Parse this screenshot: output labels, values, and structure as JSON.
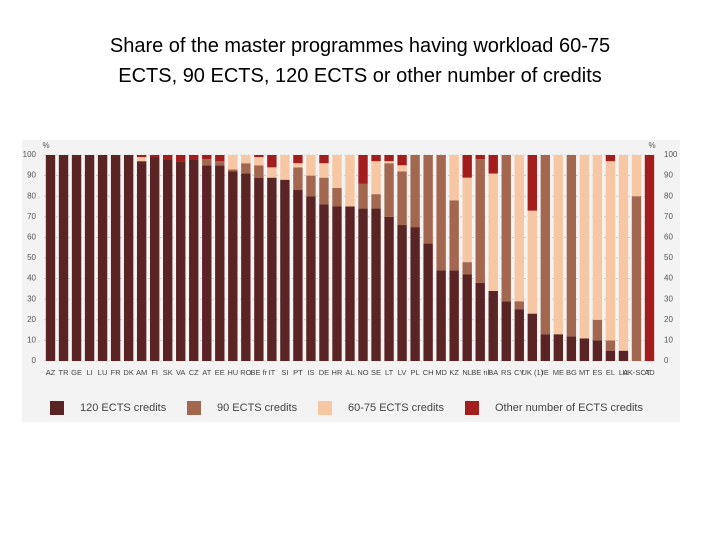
{
  "chart_data": {
    "type": "stacked-bar",
    "title_lines": [
      "Share of the  master programmes having workload 60-75",
      "ECTS, 90 ECTS, 120 ECTS or other number of credits"
    ],
    "y_unit": "%",
    "categories": [
      "AZ",
      "TR",
      "GE",
      "LI",
      "LU",
      "FR",
      "DK",
      "AM",
      "FI",
      "SK",
      "VA",
      "CZ",
      "AT",
      "EE",
      "HU",
      "RO",
      "BE fr",
      "IT",
      "SI",
      "PT",
      "IS",
      "DE",
      "HR",
      "AL",
      "NO",
      "SE",
      "LT",
      "LV",
      "PL",
      "CH",
      "MD",
      "KZ",
      "NL",
      "BE nl",
      "BA",
      "RS",
      "CY",
      "UK (1)",
      "IE",
      "ME",
      "BG",
      "MT",
      "ES",
      "EL",
      "LA",
      "UK-SCT",
      "AD"
    ],
    "series": [
      {
        "name": "120 ECTS credits",
        "color": "#5b2424",
        "values": [
          100,
          100,
          100,
          100,
          100,
          100,
          100,
          97,
          99,
          98,
          97,
          98,
          95,
          95,
          92,
          91,
          89,
          89,
          88,
          83,
          80,
          76,
          75,
          75,
          74,
          74,
          70,
          66,
          65,
          57,
          44,
          44,
          42,
          38,
          34,
          29,
          25,
          23,
          13,
          13,
          12,
          11,
          10,
          5,
          5,
          0,
          0
        ]
      },
      {
        "name": "90 ECTS credits",
        "color": "#a2674e",
        "values": [
          0,
          0,
          0,
          0,
          0,
          0,
          0,
          0,
          0,
          0,
          0,
          0,
          3,
          2,
          1,
          5,
          6,
          0,
          0,
          11,
          10,
          13,
          9,
          0,
          12,
          7,
          26,
          26,
          35,
          43,
          56,
          34,
          6,
          60,
          0,
          71,
          4,
          0,
          87,
          0,
          88,
          0,
          10,
          5,
          0,
          80,
          0
        ]
      },
      {
        "name": "60-75 ECTS credits",
        "color": "#f6c7a2",
        "values": [
          0,
          0,
          0,
          0,
          0,
          0,
          0,
          2,
          0,
          0,
          0,
          0,
          0,
          0,
          7,
          4,
          4,
          5,
          12,
          2,
          10,
          7,
          16,
          25,
          0,
          16,
          1,
          3,
          0,
          0,
          0,
          22,
          41,
          0,
          57,
          0,
          71,
          50,
          0,
          87,
          0,
          89,
          80,
          87,
          95,
          20,
          0
        ]
      },
      {
        "name": "Other number of ECTS credits",
        "color": "#a31d1d",
        "values": [
          0,
          0,
          0,
          0,
          0,
          0,
          0,
          1,
          1,
          2,
          3,
          2,
          2,
          3,
          0,
          0,
          1,
          6,
          0,
          4,
          0,
          4,
          0,
          0,
          14,
          3,
          3,
          5,
          0,
          0,
          0,
          0,
          11,
          2,
          9,
          0,
          0,
          27,
          0,
          0,
          0,
          0,
          0,
          3,
          0,
          0,
          100
        ]
      }
    ],
    "ylim": [
      0,
      100
    ],
    "yticks": [
      0,
      10,
      20,
      30,
      40,
      50,
      60,
      70,
      80,
      90,
      100
    ],
    "grid": true
  }
}
